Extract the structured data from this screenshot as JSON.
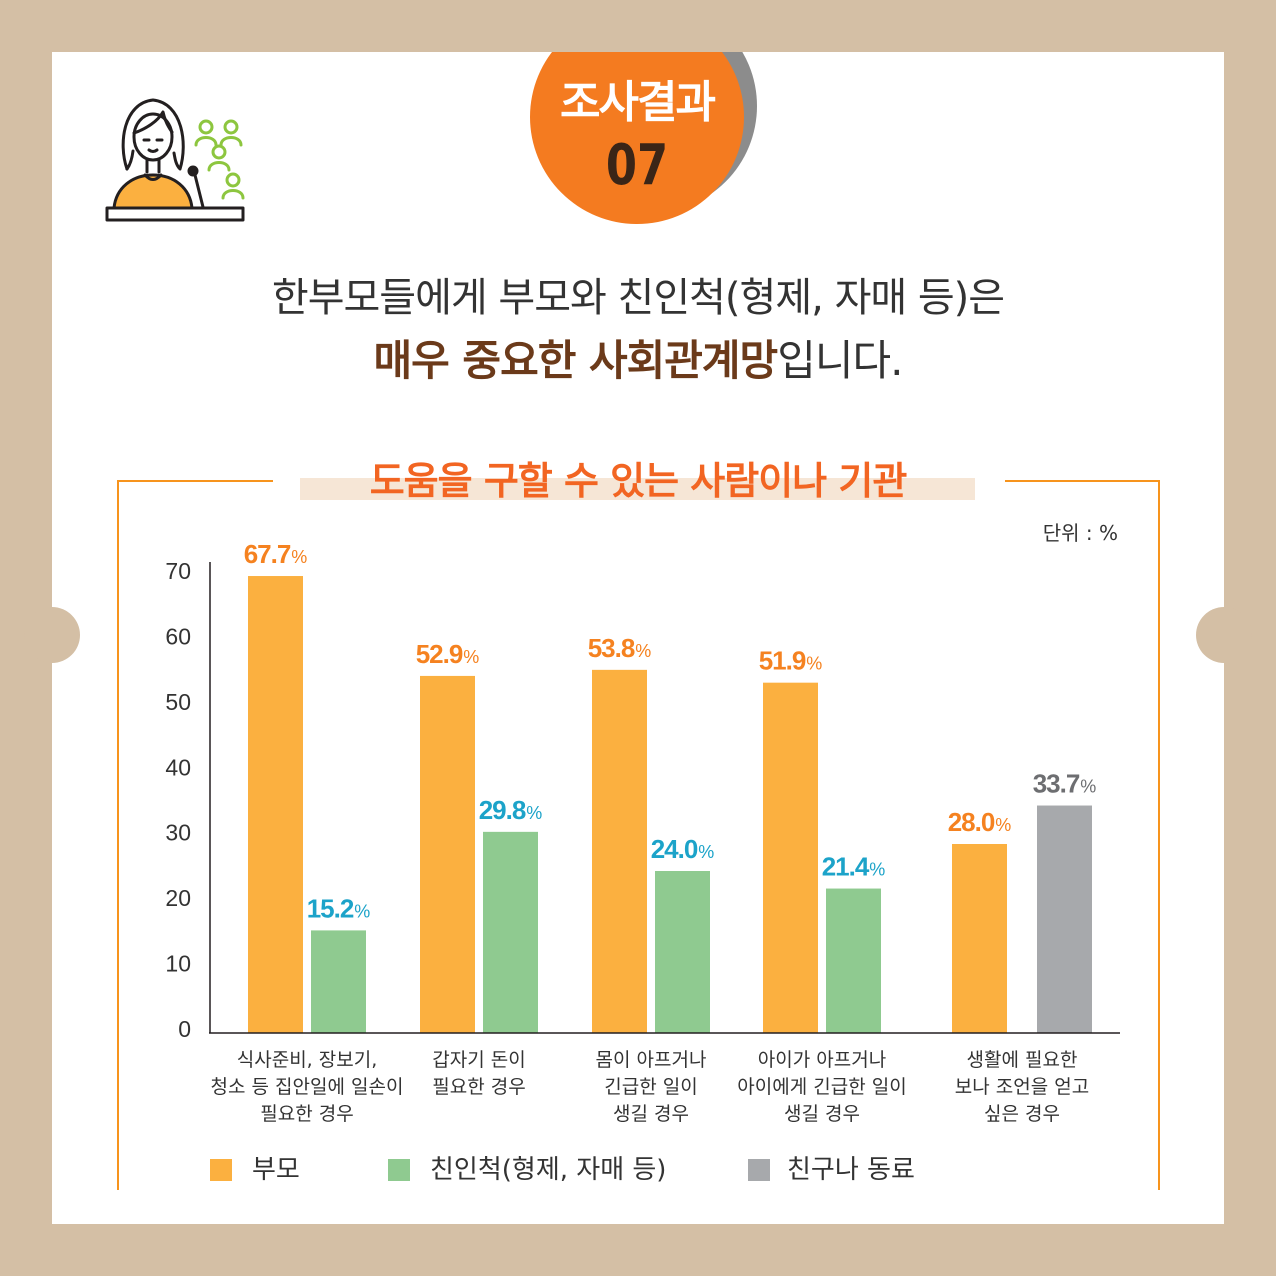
{
  "theme": {
    "frame": "#d4bfa5",
    "accent": "#f47b20",
    "title": "#f26522",
    "emphasis": "#6b3a1a",
    "highlight": "#f6e6d6",
    "line": "#f7941d"
  },
  "icons": {
    "header": "presenter-at-podium-icon",
    "audience": "audience-person-icon"
  },
  "badge": {
    "label": "조사결과",
    "number": "07"
  },
  "headline": {
    "line1": "한부모들에게 부모와 친인척(형제, 자매 등)은",
    "line2_emphasis": "매우 중요한 사회관계망",
    "line2_rest": "입니다."
  },
  "chart_data": {
    "type": "bar",
    "title": "도움을 구할 수 있는 사람이나 기관",
    "unit_label": "단위 : %",
    "value_suffix": "%",
    "categories": [
      "식사준비, 장보기,\n청소 등 집안일에 일손이\n필요한 경우",
      "갑자기 돈이\n필요한 경우",
      "몸이 아프거나\n긴급한 일이\n생길 경우",
      "아이가 아프거나\n아이에게 긴급한 일이\n생길 경우",
      "생활에 필요한\n보나 조언을 얻고\n싶은 경우"
    ],
    "series": [
      {
        "name": "부모",
        "values": [
          67.7,
          52.9,
          53.8,
          51.9,
          28.0
        ],
        "color": "#fbb040",
        "label_color": "#f58220"
      },
      {
        "name": "친인척(형제, 자매 등)",
        "values": [
          15.2,
          29.8,
          24.0,
          21.4,
          null
        ],
        "color": "#8fca90",
        "label_color": "#1ca3c9"
      },
      {
        "name": "친구나 동료",
        "values": [
          null,
          null,
          null,
          null,
          33.7
        ],
        "color": "#a7a9ac",
        "label_color": "#6d6e71"
      }
    ],
    "ylim": [
      0,
      70
    ],
    "yticks": [
      0,
      10,
      20,
      30,
      40,
      50,
      60,
      70
    ],
    "grid": false,
    "legend": "bottom"
  }
}
